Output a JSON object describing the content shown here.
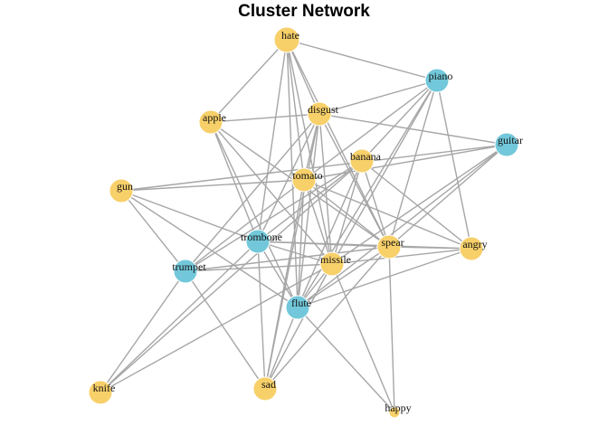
{
  "title": "Cluster Network",
  "colors": {
    "group_a": "#F7D06A",
    "group_b": "#72C8DA",
    "edge": "#A6A6A6"
  },
  "nodes": [
    {
      "id": "hate",
      "group": "a"
    },
    {
      "id": "piano",
      "group": "b"
    },
    {
      "id": "apple",
      "group": "a"
    },
    {
      "id": "disgust",
      "group": "a"
    },
    {
      "id": "guitar",
      "group": "b"
    },
    {
      "id": "banana",
      "group": "a"
    },
    {
      "id": "tomato",
      "group": "a"
    },
    {
      "id": "gun",
      "group": "a"
    },
    {
      "id": "trombone",
      "group": "b"
    },
    {
      "id": "spear",
      "group": "a"
    },
    {
      "id": "angry",
      "group": "a"
    },
    {
      "id": "missile",
      "group": "a"
    },
    {
      "id": "trumpet",
      "group": "b"
    },
    {
      "id": "flute",
      "group": "b"
    },
    {
      "id": "knife",
      "group": "a"
    },
    {
      "id": "sad",
      "group": "a"
    },
    {
      "id": "happy",
      "group": "a"
    }
  ],
  "edges": [
    [
      "hate",
      "apple"
    ],
    [
      "hate",
      "piano"
    ],
    [
      "hate",
      "disgust"
    ],
    [
      "hate",
      "tomato"
    ],
    [
      "hate",
      "trombone"
    ],
    [
      "hate",
      "missile"
    ],
    [
      "hate",
      "spear"
    ],
    [
      "hate",
      "flute"
    ],
    [
      "piano",
      "disgust"
    ],
    [
      "piano",
      "tomato"
    ],
    [
      "piano",
      "missile"
    ],
    [
      "piano",
      "spear"
    ],
    [
      "piano",
      "angry"
    ],
    [
      "piano",
      "flute"
    ],
    [
      "piano",
      "banana"
    ],
    [
      "apple",
      "disgust"
    ],
    [
      "apple",
      "trombone"
    ],
    [
      "apple",
      "missile"
    ],
    [
      "apple",
      "spear"
    ],
    [
      "apple",
      "flute"
    ],
    [
      "disgust",
      "guitar"
    ],
    [
      "disgust",
      "tomato"
    ],
    [
      "disgust",
      "trumpet"
    ],
    [
      "disgust",
      "trombone"
    ],
    [
      "disgust",
      "missile"
    ],
    [
      "disgust",
      "spear"
    ],
    [
      "disgust",
      "sad"
    ],
    [
      "disgust",
      "flute"
    ],
    [
      "guitar",
      "gun"
    ],
    [
      "guitar",
      "tomato"
    ],
    [
      "guitar",
      "spear"
    ],
    [
      "guitar",
      "flute"
    ],
    [
      "guitar",
      "missile"
    ],
    [
      "banana",
      "trumpet"
    ],
    [
      "banana",
      "trombone"
    ],
    [
      "banana",
      "spear"
    ],
    [
      "banana",
      "angry"
    ],
    [
      "banana",
      "missile"
    ],
    [
      "banana",
      "flute"
    ],
    [
      "banana",
      "knife"
    ],
    [
      "tomato",
      "gun"
    ],
    [
      "tomato",
      "trumpet"
    ],
    [
      "tomato",
      "angry"
    ],
    [
      "tomato",
      "spear"
    ],
    [
      "tomato",
      "missile"
    ],
    [
      "tomato",
      "sad"
    ],
    [
      "tomato",
      "flute"
    ],
    [
      "gun",
      "trombone"
    ],
    [
      "gun",
      "trumpet"
    ],
    [
      "gun",
      "flute"
    ],
    [
      "trombone",
      "spear"
    ],
    [
      "trombone",
      "missile"
    ],
    [
      "trombone",
      "angry"
    ],
    [
      "trombone",
      "sad"
    ],
    [
      "trombone",
      "flute"
    ],
    [
      "trombone",
      "knife"
    ],
    [
      "trumpet",
      "missile"
    ],
    [
      "trumpet",
      "spear"
    ],
    [
      "trumpet",
      "knife"
    ],
    [
      "trumpet",
      "sad"
    ],
    [
      "spear",
      "angry"
    ],
    [
      "spear",
      "flute"
    ],
    [
      "spear",
      "happy"
    ],
    [
      "spear",
      "sad"
    ],
    [
      "angry",
      "flute"
    ],
    [
      "angry",
      "missile"
    ],
    [
      "missile",
      "flute"
    ],
    [
      "missile",
      "happy"
    ],
    [
      "missile",
      "sad"
    ],
    [
      "flute",
      "happy"
    ],
    [
      "flute",
      "sad"
    ],
    [
      "knife",
      "missile"
    ]
  ]
}
